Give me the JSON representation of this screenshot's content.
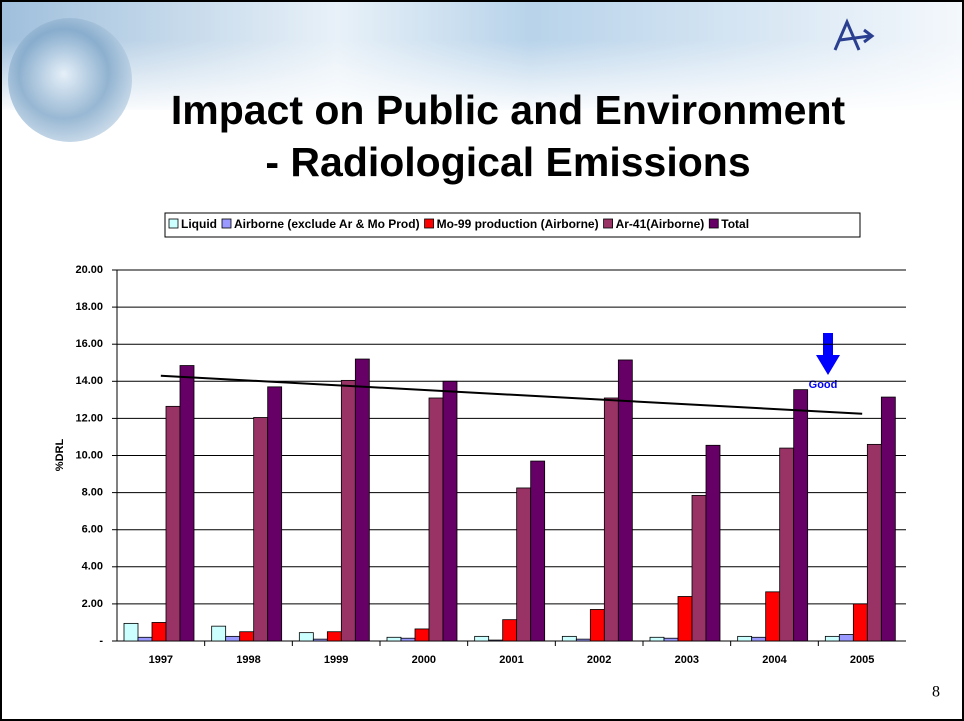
{
  "title_lines": [
    "Impact on Public and Environment",
    "- Radiological Emissions"
  ],
  "page_number": "8",
  "chart_data": {
    "type": "bar",
    "y_label": "%DRL",
    "categories": [
      "1997",
      "1998",
      "1999",
      "2000",
      "2001",
      "2002",
      "2003",
      "2004",
      "2005"
    ],
    "series": [
      {
        "name": "Liquid",
        "color": "#ccffff",
        "values": [
          0.95,
          0.8,
          0.45,
          0.2,
          0.25,
          0.25,
          0.2,
          0.25,
          0.25
        ]
      },
      {
        "name": "Airborne (exclude Ar & Mo Prod)",
        "color": "#9999ff",
        "values": [
          0.2,
          0.25,
          0.1,
          0.15,
          0.05,
          0.1,
          0.15,
          0.2,
          0.35
        ]
      },
      {
        "name": "Mo-99 production (Airborne)",
        "color": "#ff0000",
        "values": [
          1.0,
          0.5,
          0.5,
          0.65,
          1.15,
          1.7,
          2.4,
          2.65,
          2.0
        ]
      },
      {
        "name": "Ar-41(Airborne)",
        "color": "#993366",
        "values": [
          12.65,
          12.05,
          14.05,
          13.1,
          8.25,
          13.1,
          7.85,
          10.4,
          10.6
        ]
      },
      {
        "name": "Total",
        "color": "#660066",
        "values": [
          14.85,
          13.7,
          15.2,
          14.0,
          9.7,
          15.15,
          10.55,
          13.55,
          13.15
        ]
      }
    ],
    "trendline": [
      14.3,
      12.25
    ],
    "annotation": "Good",
    "ylim": [
      0,
      20
    ],
    "yticks": [
      {
        "value": 0,
        "label": "-"
      },
      {
        "value": 2,
        "label": "2.00"
      },
      {
        "value": 4,
        "label": "4.00"
      },
      {
        "value": 6,
        "label": "6.00"
      },
      {
        "value": 8,
        "label": "8.00"
      },
      {
        "value": 10,
        "label": "10.00"
      },
      {
        "value": 12,
        "label": "12.00"
      },
      {
        "value": 14,
        "label": "14.00"
      },
      {
        "value": 16,
        "label": "16.00"
      },
      {
        "value": 18,
        "label": "18.00"
      },
      {
        "value": 20,
        "label": "20.00"
      }
    ],
    "grid": true
  }
}
